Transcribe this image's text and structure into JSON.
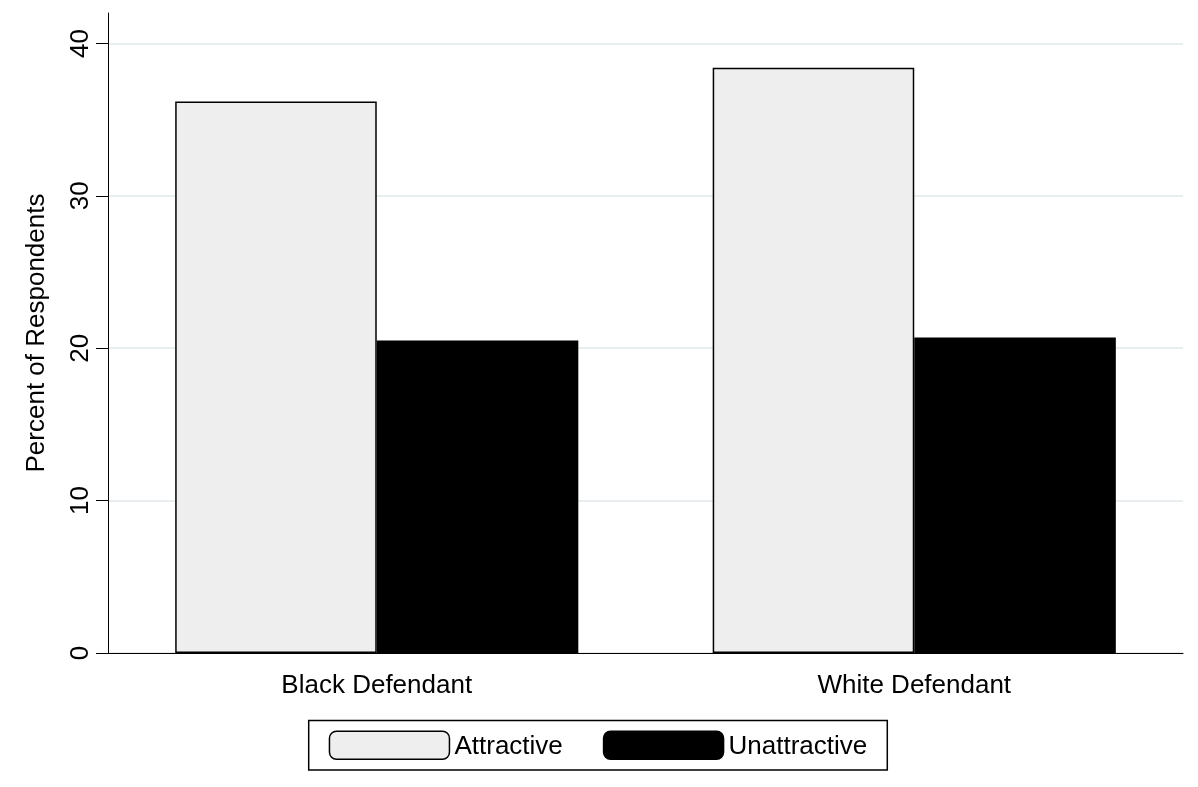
{
  "chart_data": {
    "type": "bar",
    "ylabel": "Percent of Respondents",
    "categories": [
      "Black Defendant",
      "White Defendant"
    ],
    "series": [
      {
        "name": "Attractive",
        "color": "#eeeeee",
        "values": [
          36.2,
          38.4
        ]
      },
      {
        "name": "Unattractive",
        "color": "#000000",
        "values": [
          20.5,
          20.7
        ]
      }
    ],
    "ylim": [
      0,
      42
    ],
    "yticks": [
      0,
      10,
      20,
      30,
      40
    ],
    "grid": "y",
    "legend": "bottom"
  }
}
